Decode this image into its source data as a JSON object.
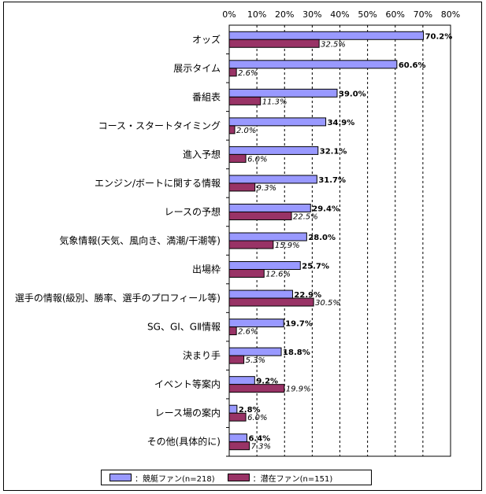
{
  "chart_data": {
    "type": "bar",
    "orientation": "horizontal",
    "categories": [
      "オッズ",
      "展示タイム",
      "番組表",
      "コース・スタートタイミング",
      "進入予想",
      "エンジン/ボートに関する情報",
      "レースの予想",
      "気象情報(天気、風向き、満潮/干潮等)",
      "出場枠",
      "選手の情報(級別、勝率、選手のプロフィール等)",
      "SG、GⅠ、GⅡ情報",
      "決まり手",
      "イベント等案内",
      "レース場の案内",
      "その他(具体的に)"
    ],
    "series": [
      {
        "name": "：競艇ファン(n=218)",
        "color": "#9999ff",
        "values": [
          70.2,
          60.6,
          39.0,
          34.9,
          32.1,
          31.7,
          29.4,
          28.0,
          25.7,
          22.9,
          19.7,
          18.8,
          9.2,
          2.8,
          6.4
        ],
        "labels": [
          "70.2%",
          "60.6%",
          "39.0%",
          "34.9%",
          "32.1%",
          "31.7%",
          "29.4%",
          "28.0%",
          "25.7%",
          "22.9%",
          "19.7%",
          "18.8%",
          "9.2%",
          "2.8%",
          "6.4%"
        ]
      },
      {
        "name": "：潜在ファン(n=151)",
        "color": "#993366",
        "values": [
          32.5,
          2.6,
          11.3,
          2.0,
          6.0,
          9.3,
          22.5,
          15.9,
          12.6,
          30.5,
          2.6,
          5.3,
          19.9,
          6.0,
          7.3
        ],
        "labels": [
          "32.5%",
          "2.6%",
          "11.3%",
          "2.0%",
          "6.0%",
          "9.3%",
          "22.5%",
          "15.9%",
          "12.6%",
          "30.5%",
          "2.6%",
          "5.3%",
          "19.9%",
          "6.0%",
          "7.3%"
        ]
      }
    ],
    "xlim": [
      0,
      80
    ],
    "xticks": [
      "0%",
      "10%",
      "20%",
      "30%",
      "40%",
      "50%",
      "60%",
      "70%",
      "80%"
    ],
    "xtick_values": [
      0,
      10,
      20,
      30,
      40,
      50,
      60,
      70,
      80
    ],
    "grid": "vertical dashed",
    "legend": "bottom"
  }
}
